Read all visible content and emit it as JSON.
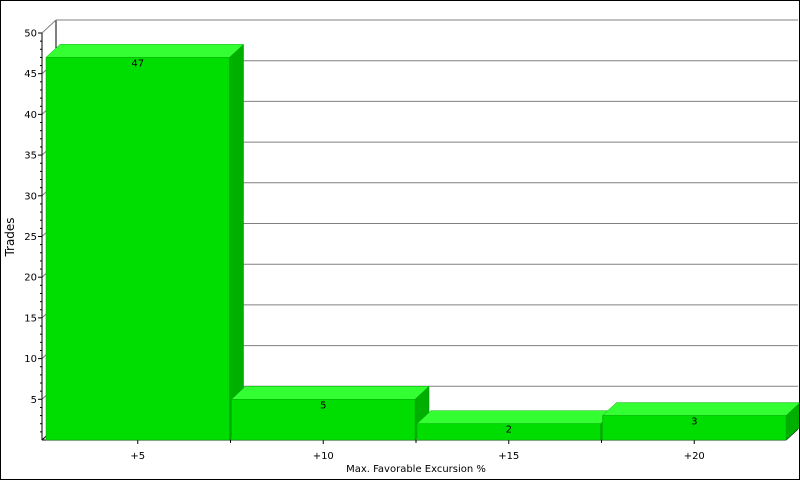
{
  "chart_data": {
    "type": "bar",
    "style": "3d",
    "title": "",
    "xlabel": "Max. Favorable Excursion %",
    "ylabel": "Trades",
    "categories": [
      "+5",
      "+10",
      "+15",
      "+20"
    ],
    "values": [
      47,
      5,
      2,
      3
    ],
    "data_labels": [
      "47",
      "5",
      "2",
      "3"
    ],
    "ylim": [
      0,
      50
    ],
    "yticks": [
      5,
      10,
      15,
      20,
      25,
      30,
      35,
      40,
      45,
      50
    ],
    "ytick_labels": [
      "5",
      "10",
      "15",
      "20",
      "25",
      "30",
      "35",
      "40",
      "45",
      "50"
    ],
    "grid": true,
    "legend": "none",
    "colors": {
      "bar_front": "#00dd00",
      "bar_top": "#33ff33",
      "bar_side": "#00b000",
      "grid": "#808080",
      "background": "#ffffff"
    }
  }
}
